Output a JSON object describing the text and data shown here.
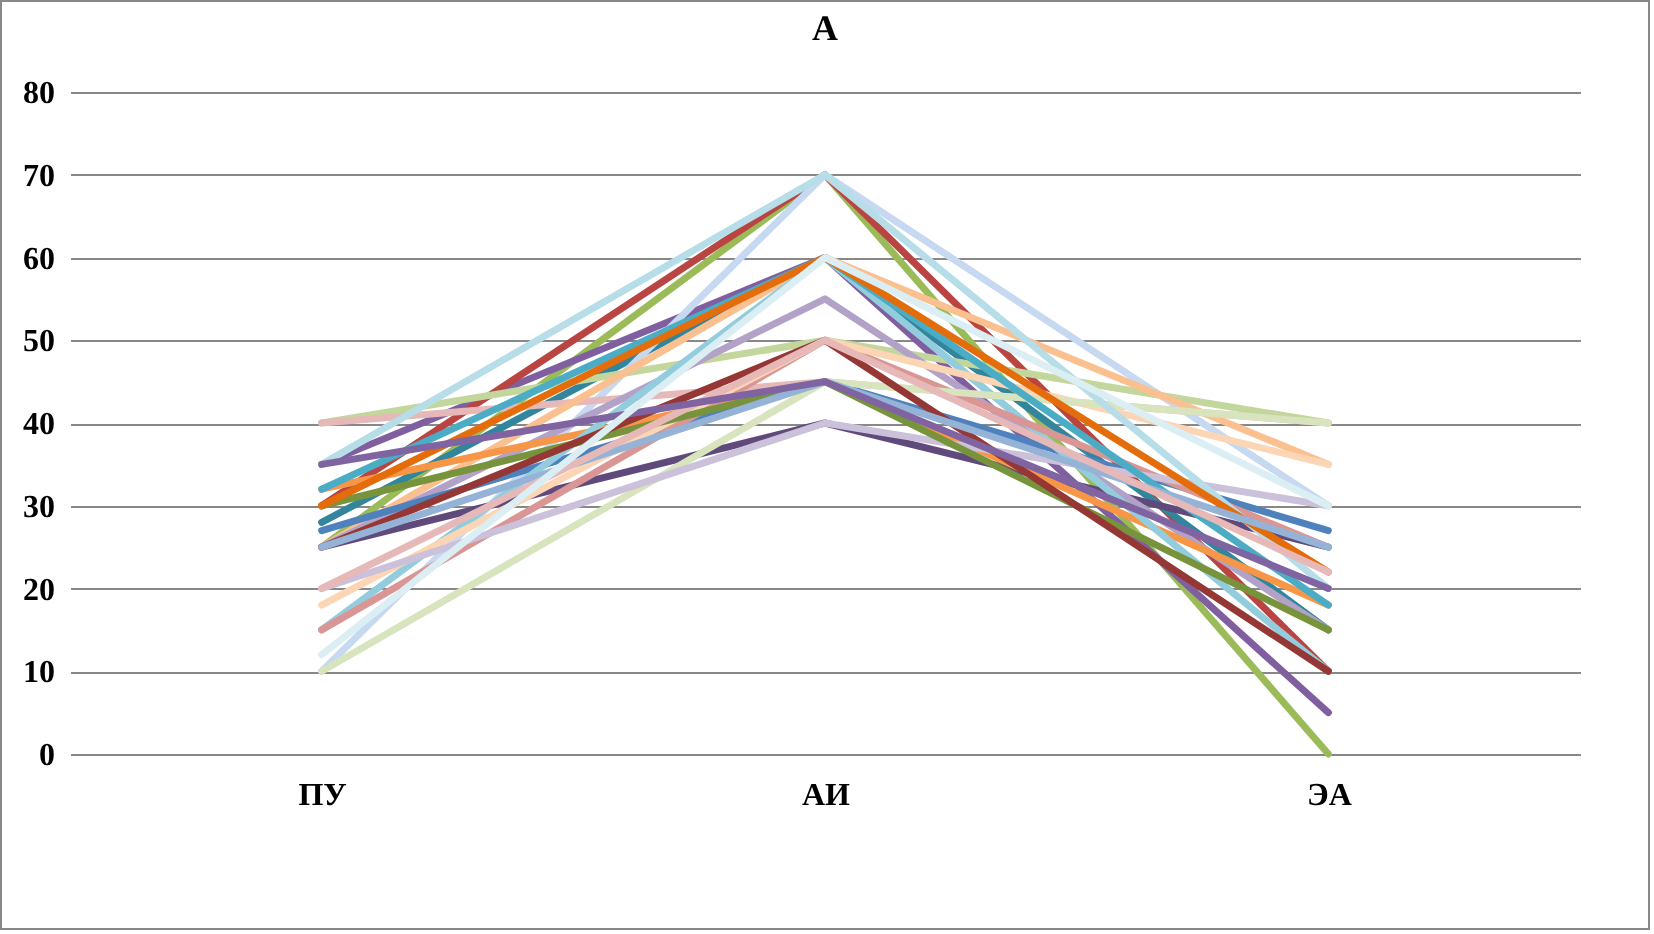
{
  "chart_data": {
    "type": "line",
    "title": "А",
    "categories": [
      "ПУ",
      "АИ",
      "ЭА"
    ],
    "ylim": [
      0,
      80
    ],
    "yticks": [
      0,
      10,
      20,
      30,
      40,
      50,
      60,
      70,
      80
    ],
    "grid": "y",
    "legend": false,
    "marker": "none",
    "line_style": "solid",
    "series": [
      {
        "color": "#9bbb59",
        "values": [
          25,
          70,
          0
        ]
      },
      {
        "color": "#7f5f9f",
        "values": [
          35,
          60,
          5
        ]
      },
      {
        "color": "#b94441",
        "values": [
          30,
          70,
          10
        ]
      },
      {
        "color": "#31859c",
        "values": [
          28,
          60,
          15
        ]
      },
      {
        "color": "#c6d9f1",
        "values": [
          10,
          70,
          30
        ]
      },
      {
        "color": "#c3d69b",
        "values": [
          40,
          50,
          40
        ]
      },
      {
        "color": "#e6b9b8",
        "values": [
          40,
          45,
          40
        ]
      },
      {
        "color": "#fac090",
        "values": [
          25,
          60,
          35
        ]
      },
      {
        "color": "#604a7b",
        "values": [
          25,
          40,
          25
        ]
      },
      {
        "color": "#b3a2c7",
        "values": [
          25,
          55,
          15
        ]
      },
      {
        "color": "#f79646",
        "values": [
          32,
          45,
          18
        ]
      },
      {
        "color": "#4f81bd",
        "values": [
          27,
          45,
          27
        ]
      },
      {
        "color": "#93cddd",
        "values": [
          15,
          60,
          10
        ]
      },
      {
        "color": "#d99694",
        "values": [
          15,
          50,
          25
        ]
      },
      {
        "color": "#fcd5b5",
        "values": [
          18,
          50,
          35
        ]
      },
      {
        "color": "#d7e4bd",
        "values": [
          10,
          45,
          40
        ]
      },
      {
        "color": "#ccc1da",
        "values": [
          20,
          40,
          30
        ]
      },
      {
        "color": "#4bacc6",
        "values": [
          32,
          60,
          18
        ]
      },
      {
        "color": "#b7dee8",
        "values": [
          35,
          70,
          20
        ]
      },
      {
        "color": "#77933c",
        "values": [
          30,
          45,
          15
        ]
      },
      {
        "color": "#953735",
        "values": [
          25,
          50,
          10
        ]
      },
      {
        "color": "#e46c0a",
        "values": [
          30,
          60,
          22
        ]
      },
      {
        "color": "#95b3d7",
        "values": [
          25,
          45,
          25
        ]
      },
      {
        "color": "#e6b9b8",
        "values": [
          20,
          50,
          22
        ]
      },
      {
        "color": "#8064a2",
        "values": [
          35,
          45,
          20
        ]
      },
      {
        "color": "#dbeef4",
        "values": [
          12,
          60,
          30
        ]
      }
    ]
  }
}
